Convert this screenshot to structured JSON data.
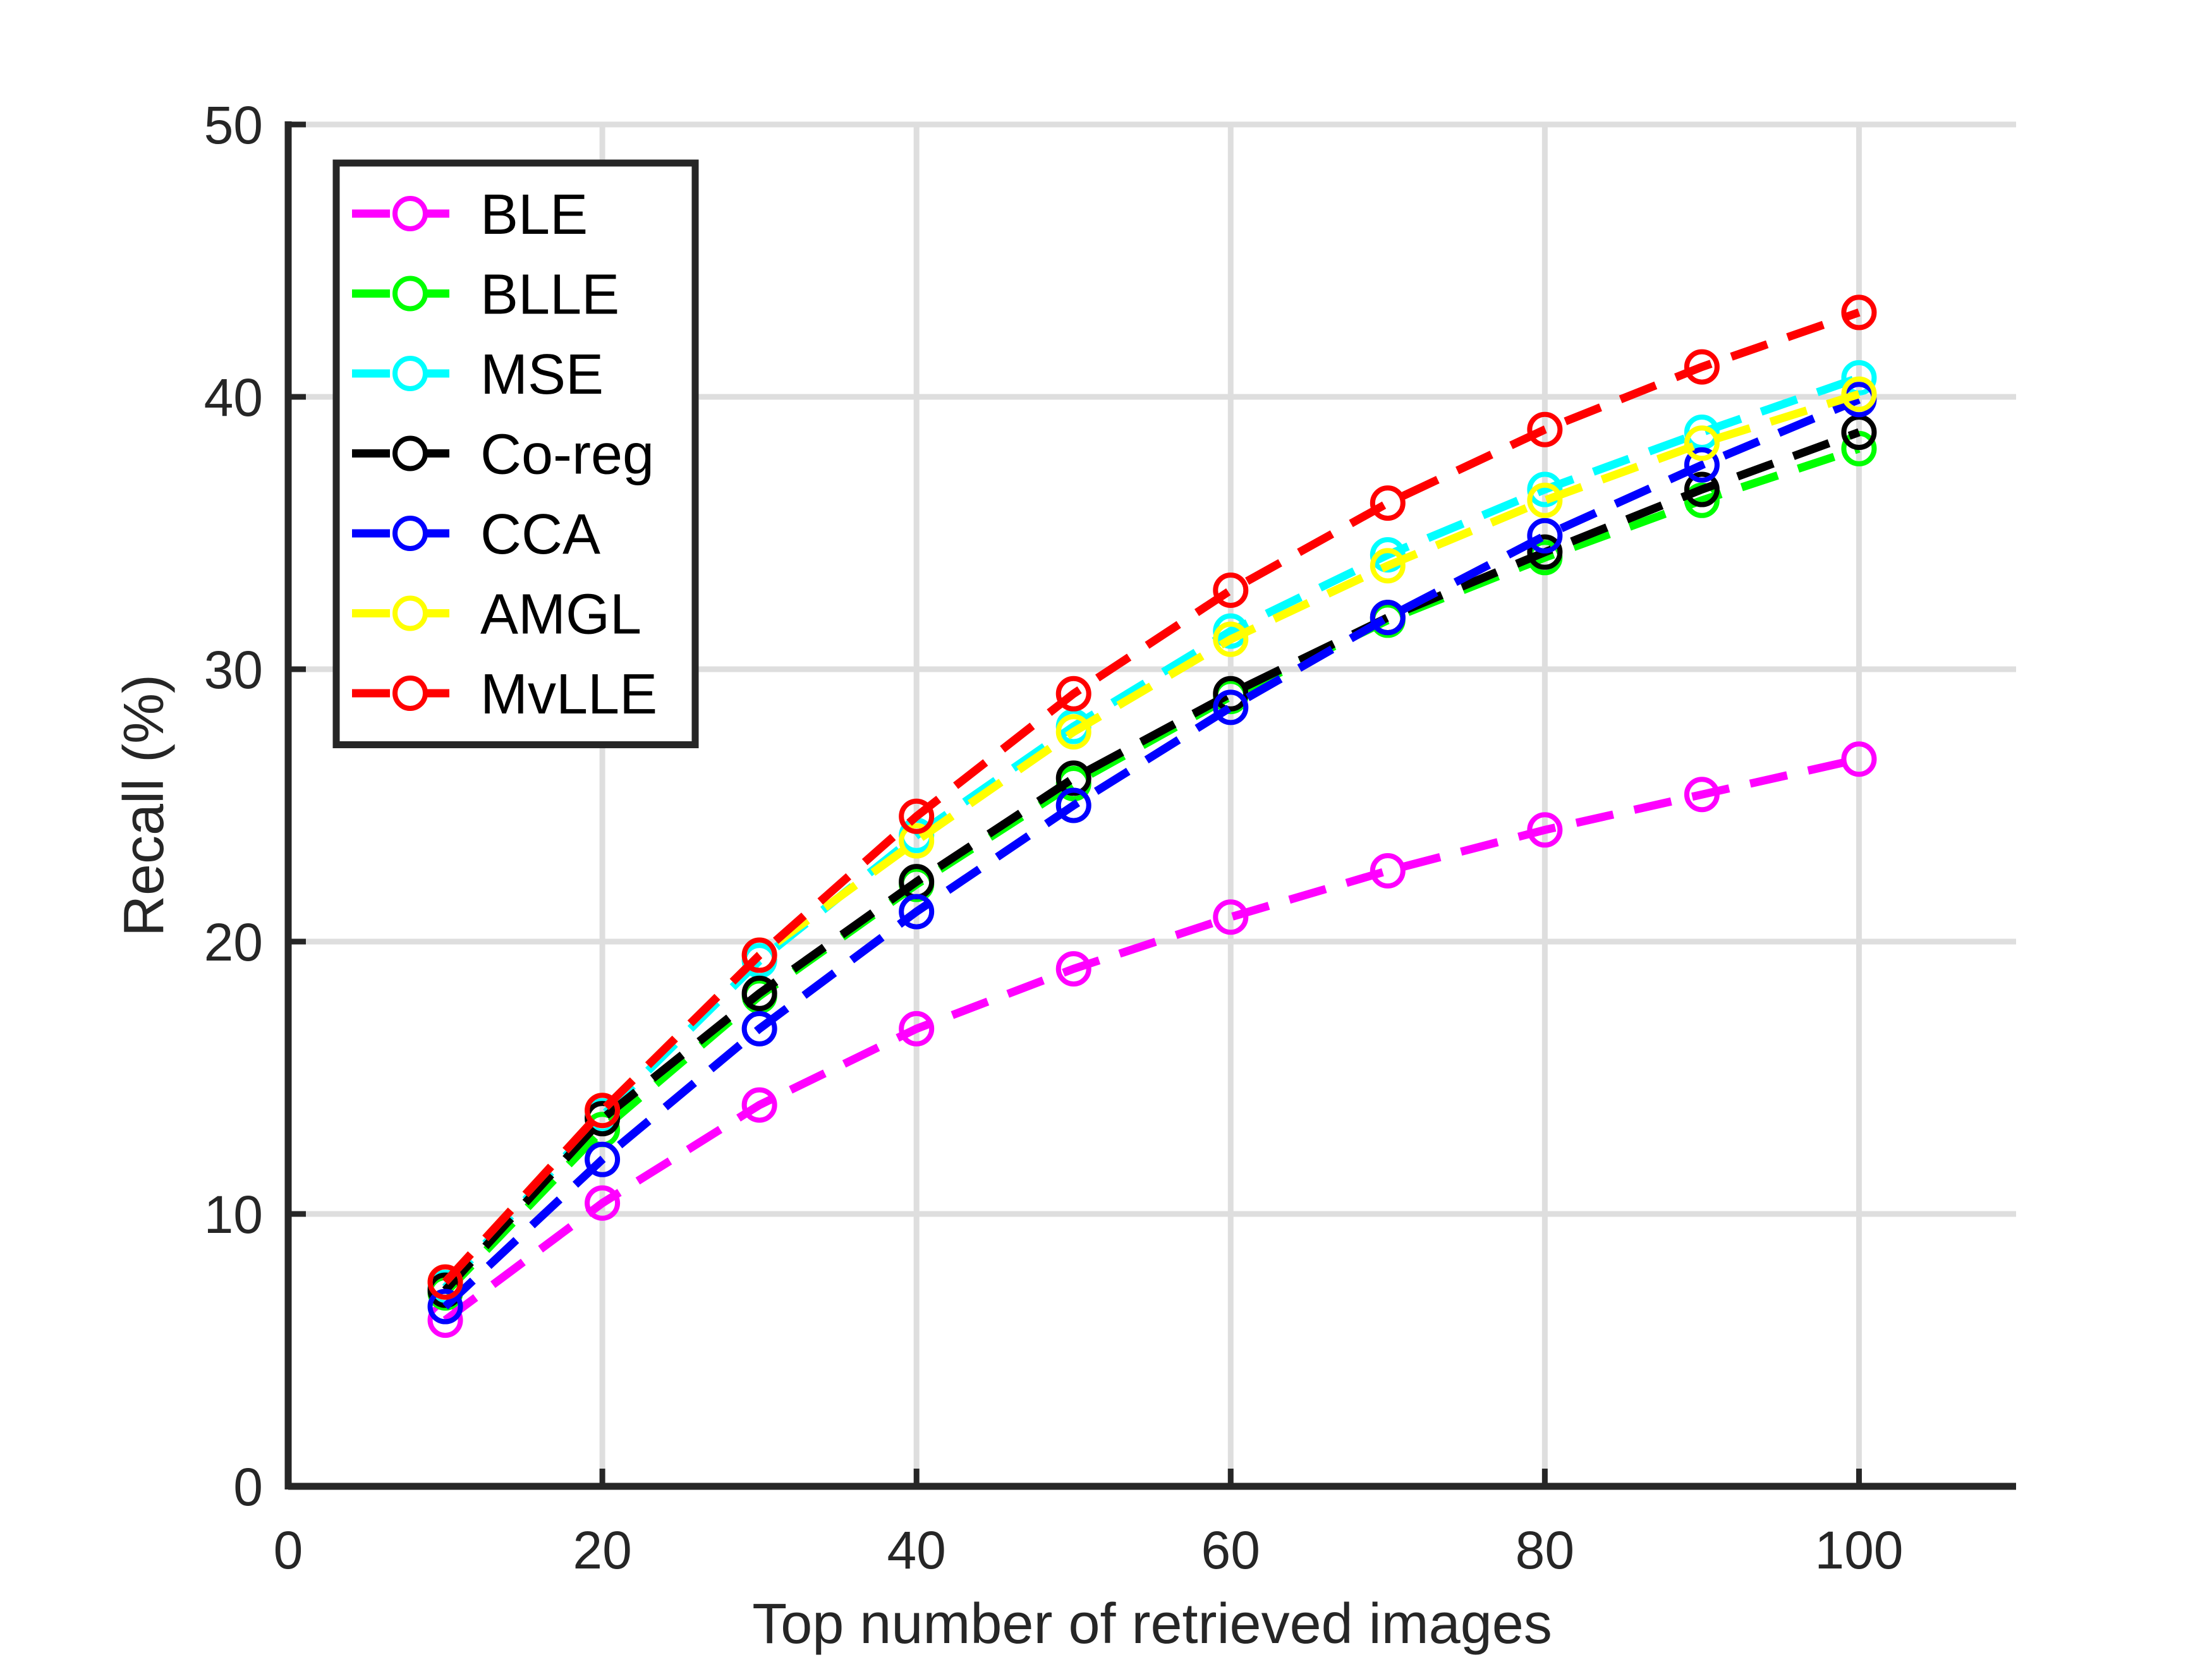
{
  "chart_data": {
    "type": "line",
    "title": "",
    "xlabel": "Top number of retrieved images",
    "ylabel": "Recall (%)",
    "xlim": [
      0,
      110
    ],
    "ylim": [
      0,
      50
    ],
    "xticks": [
      0,
      20,
      40,
      60,
      80,
      100
    ],
    "yticks": [
      0,
      10,
      20,
      30,
      40,
      50
    ],
    "xtick_labels": [
      "0",
      "20",
      "40",
      "60",
      "80",
      "100"
    ],
    "ytick_labels": [
      "0",
      "10",
      "20",
      "30",
      "40",
      "50"
    ],
    "grid": true,
    "legend_position": "top-left",
    "line_style": "dashed",
    "marker": "circle",
    "x": [
      10,
      20,
      30,
      40,
      50,
      60,
      70,
      80,
      90,
      100
    ],
    "series": [
      {
        "name": "BLE",
        "color": "#ff00ff",
        "values": [
          6.1,
          10.4,
          14.0,
          16.8,
          19.0,
          20.9,
          22.6,
          24.1,
          25.4,
          26.7
        ]
      },
      {
        "name": "BLLE",
        "color": "#00ff00",
        "values": [
          7.1,
          13.1,
          18.0,
          22.1,
          25.8,
          29.0,
          31.8,
          34.1,
          36.2,
          38.1
        ]
      },
      {
        "name": "MSE",
        "color": "#00ffff",
        "values": [
          7.3,
          13.6,
          19.3,
          23.9,
          27.9,
          31.4,
          34.2,
          36.6,
          38.7,
          40.7
        ]
      },
      {
        "name": "Co-reg",
        "color": "#000000",
        "values": [
          7.2,
          13.5,
          18.1,
          22.2,
          26.0,
          29.1,
          31.9,
          34.3,
          36.6,
          38.7
        ]
      },
      {
        "name": "CCA",
        "color": "#0000ff",
        "values": [
          6.6,
          12.0,
          16.8,
          21.1,
          25.0,
          28.6,
          31.9,
          34.9,
          37.5,
          39.9
        ]
      },
      {
        "name": "AMGL",
        "color": "#ffff00",
        "values": [
          7.5,
          13.8,
          19.5,
          23.7,
          27.7,
          31.1,
          33.8,
          36.2,
          38.3,
          40.1
        ]
      },
      {
        "name": "MvLLE",
        "color": "#ff0000",
        "values": [
          7.5,
          13.8,
          19.5,
          24.6,
          29.1,
          32.9,
          36.1,
          38.8,
          41.1,
          43.1
        ]
      }
    ]
  }
}
